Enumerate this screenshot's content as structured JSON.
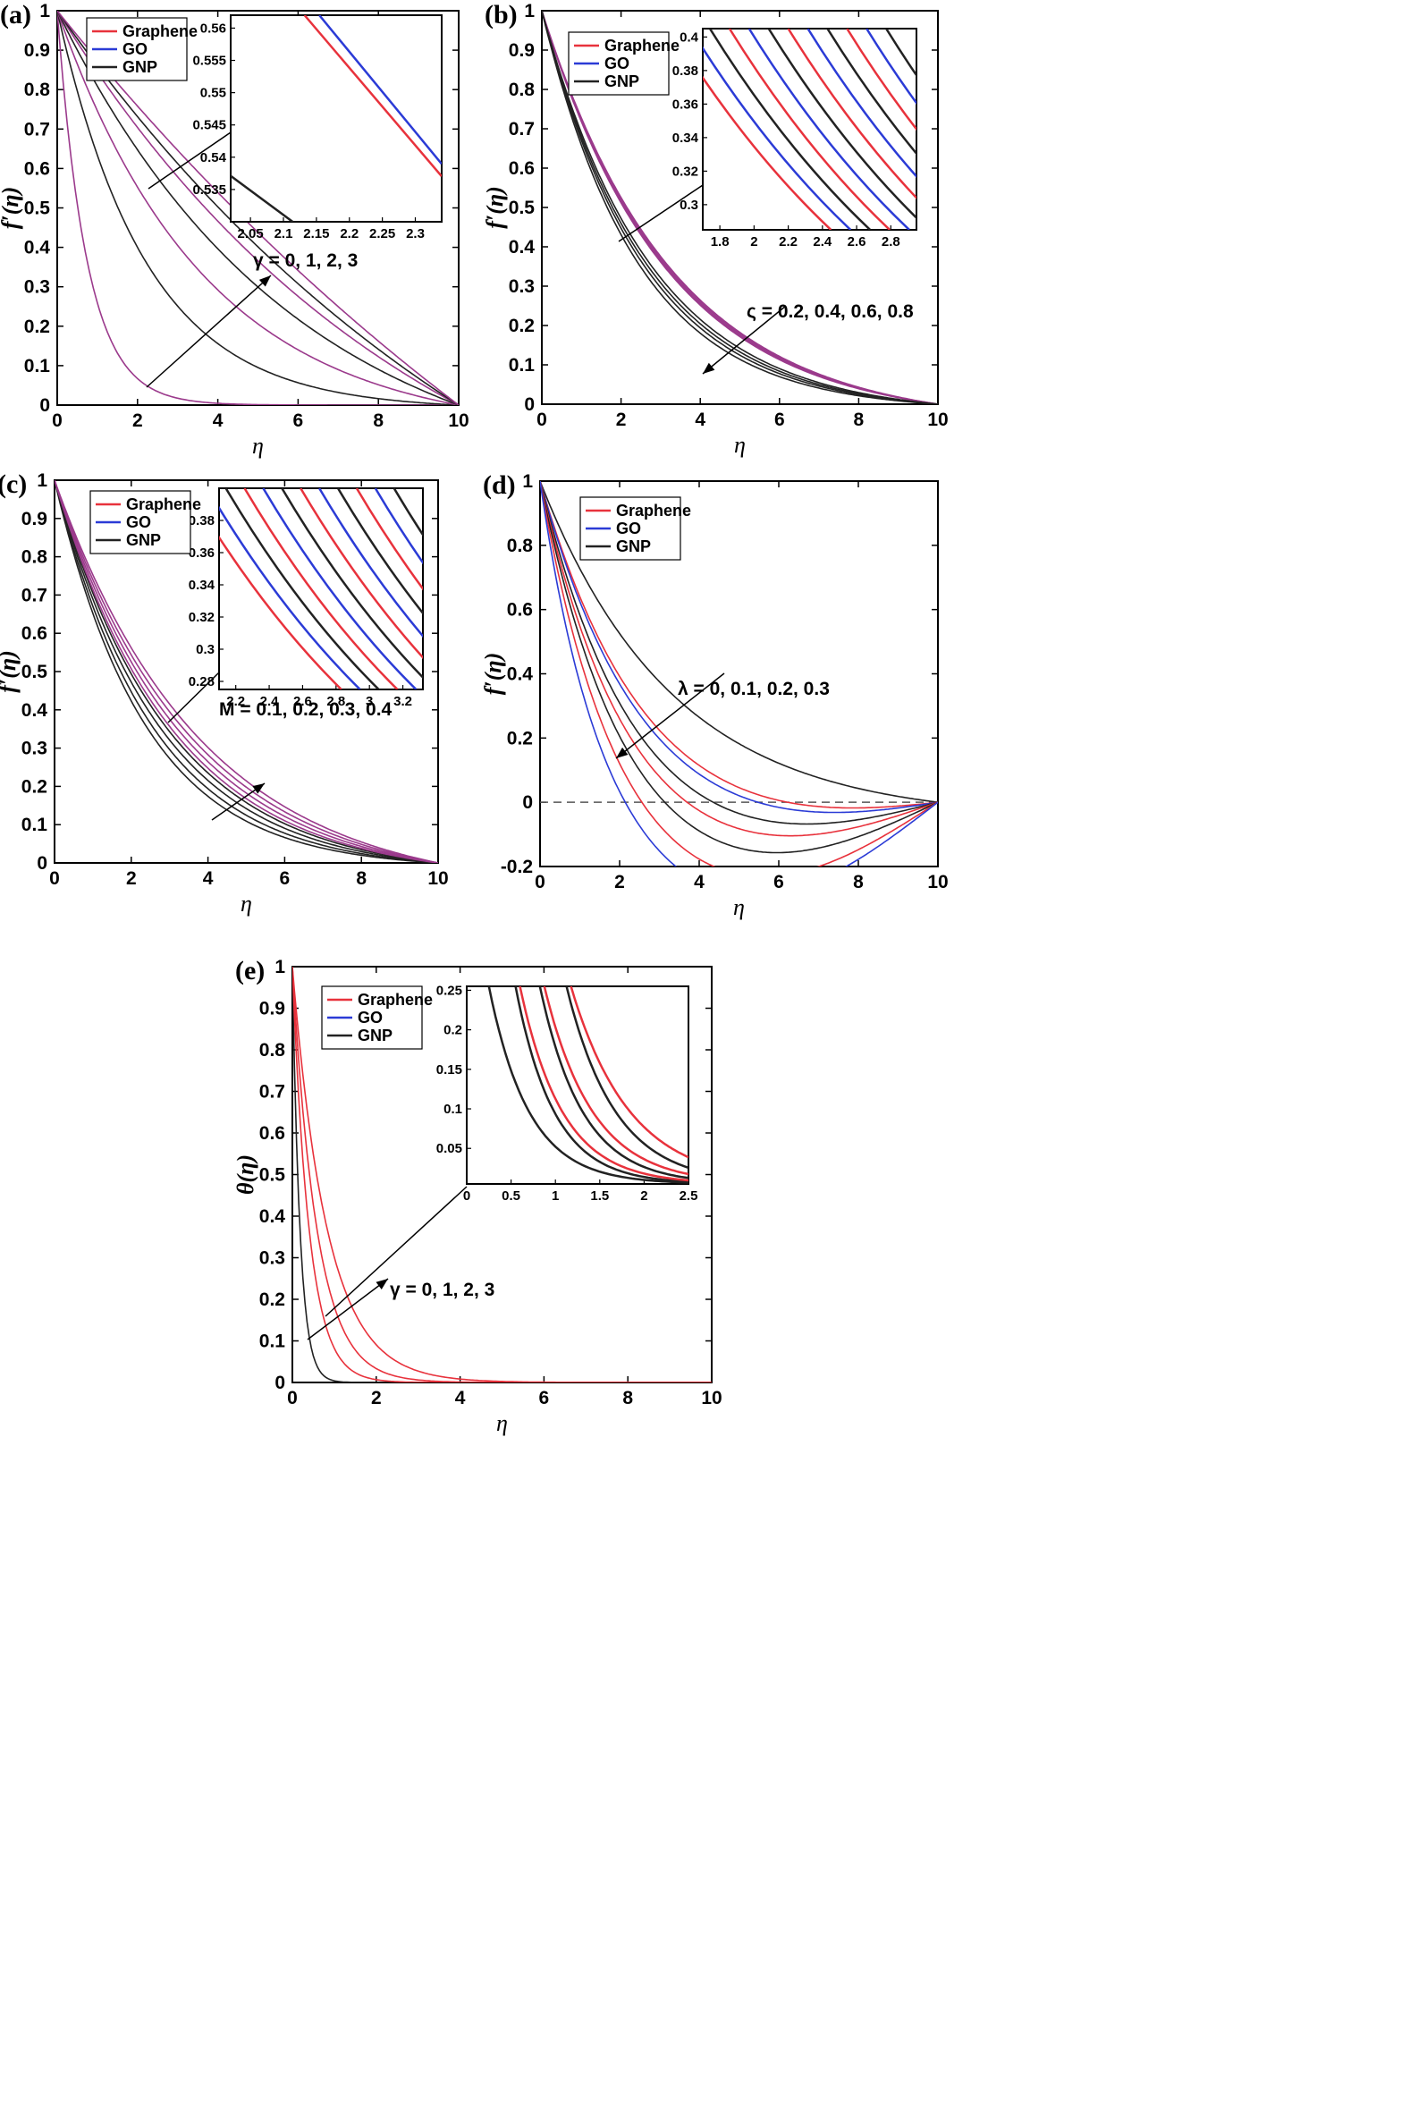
{
  "colors": {
    "graphene": "#e8323c",
    "go": "#2b3bd6",
    "gnp": "#222222",
    "mixed": "#9b3a8c"
  },
  "chart_data": [
    {
      "id": "a",
      "type": "line",
      "panel_label": "(a)",
      "ylabel": "f′(η)",
      "xlabel": "η",
      "xlim": [
        0,
        10
      ],
      "ylim": [
        0,
        1
      ],
      "xticks": [
        "0",
        "2",
        "4",
        "6",
        "8",
        "10"
      ],
      "yticks": [
        "0",
        "0.1",
        "0.2",
        "0.3",
        "0.4",
        "0.5",
        "0.6",
        "0.7",
        "0.8",
        "0.9",
        "1"
      ],
      "legend": [
        "Graphene",
        "GO",
        "GNP"
      ],
      "annotation": "γ = 0, 1, 2, 3",
      "series": [
        {
          "name": "Graphene/GO",
          "param": "γ=0",
          "kind": "decay",
          "decay_rate": 1.35
        },
        {
          "name": "GNP",
          "param": "γ=1",
          "kind": "bvp",
          "decay_rate": 0.45
        },
        {
          "name": "Graphene/GO",
          "param": "γ=1",
          "kind": "bvp",
          "decay_rate": 0.27
        },
        {
          "name": "GNP",
          "param": "γ=2",
          "kind": "bvp",
          "decay_rate": 0.17
        },
        {
          "name": "Graphene/GO",
          "param": "γ=2",
          "kind": "bvp",
          "decay_rate": 0.11
        },
        {
          "name": "GNP",
          "param": "γ=3",
          "kind": "bvp",
          "decay_rate": 0.08
        },
        {
          "name": "Graphene/GO",
          "param": "γ=3",
          "kind": "bvp",
          "decay_rate": 0.05
        }
      ],
      "inset": {
        "xlim": [
          2.02,
          2.34
        ],
        "ylim": [
          0.53,
          0.562
        ],
        "xticks": [
          "2.05",
          "2.1",
          "2.15",
          "2.2",
          "2.25",
          "2.3"
        ],
        "yticks": [
          "0.535",
          "0.54",
          "0.545",
          "0.55",
          "0.555",
          "0.56"
        ]
      }
    },
    {
      "id": "b",
      "type": "line",
      "panel_label": "(b)",
      "ylabel": "f′(η)",
      "xlabel": "η",
      "xlim": [
        0,
        10
      ],
      "ylim": [
        0,
        1
      ],
      "xticks": [
        "0",
        "2",
        "4",
        "6",
        "8",
        "10"
      ],
      "yticks": [
        "0",
        "0.1",
        "0.2",
        "0.3",
        "0.4",
        "0.5",
        "0.6",
        "0.7",
        "0.8",
        "0.9",
        "1"
      ],
      "legend": [
        "Graphene",
        "GO",
        "GNP"
      ],
      "annotation": "ς = 0.2, 0.4, 0.6, 0.8",
      "series": [
        {
          "name": "Graphene/GO",
          "param": "ς=0.2",
          "kind": "bvp",
          "decay_rate": 0.3
        },
        {
          "name": "Graphene/GO",
          "param": "ς=0.4",
          "kind": "bvp",
          "decay_rate": 0.305
        },
        {
          "name": "Graphene/GO",
          "param": "ς=0.6",
          "kind": "bvp",
          "decay_rate": 0.31
        },
        {
          "name": "Graphene/GO",
          "param": "ς=0.8",
          "kind": "bvp",
          "decay_rate": 0.315
        },
        {
          "name": "GNP",
          "param": "ς=0.2",
          "kind": "bvp",
          "decay_rate": 0.36
        },
        {
          "name": "GNP",
          "param": "ς=0.4",
          "kind": "bvp",
          "decay_rate": 0.375
        },
        {
          "name": "GNP",
          "param": "ς=0.6",
          "kind": "bvp",
          "decay_rate": 0.39
        },
        {
          "name": "GNP",
          "param": "ς=0.8",
          "kind": "bvp",
          "decay_rate": 0.41
        }
      ],
      "inset": {
        "xlim": [
          1.7,
          2.95
        ],
        "ylim": [
          0.285,
          0.405
        ],
        "xticks": [
          "1.8",
          "2",
          "2.2",
          "2.4",
          "2.6",
          "2.8"
        ],
        "yticks": [
          "0.3",
          "0.32",
          "0.34",
          "0.36",
          "0.38",
          "0.4"
        ]
      }
    },
    {
      "id": "c",
      "type": "line",
      "panel_label": "(c)",
      "ylabel": "f′(η)",
      "xlabel": "η",
      "xlim": [
        0,
        10
      ],
      "ylim": [
        0,
        1
      ],
      "xticks": [
        "0",
        "2",
        "4",
        "6",
        "8",
        "10"
      ],
      "yticks": [
        "0",
        "0.1",
        "0.2",
        "0.3",
        "0.4",
        "0.5",
        "0.6",
        "0.7",
        "0.8",
        "0.9",
        "1"
      ],
      "legend": [
        "Graphene",
        "GO",
        "GNP"
      ],
      "annotation": "M = 0.1, 0.2, 0.3, 0.4",
      "series": [
        {
          "name": "GNP",
          "param": "M=0.1",
          "kind": "bvp",
          "decay_rate": 0.42
        },
        {
          "name": "GNP",
          "param": "M=0.2",
          "kind": "bvp",
          "decay_rate": 0.39
        },
        {
          "name": "GNP",
          "param": "M=0.3",
          "kind": "bvp",
          "decay_rate": 0.36
        },
        {
          "name": "GNP",
          "param": "M=0.4",
          "kind": "bvp",
          "decay_rate": 0.335
        },
        {
          "name": "Graphene/GO",
          "param": "M=0.1",
          "kind": "bvp",
          "decay_rate": 0.32
        },
        {
          "name": "Graphene/GO",
          "param": "M=0.2",
          "kind": "bvp",
          "decay_rate": 0.3
        },
        {
          "name": "Graphene/GO",
          "param": "M=0.3",
          "kind": "bvp",
          "decay_rate": 0.28
        },
        {
          "name": "Graphene/GO",
          "param": "M=0.4",
          "kind": "bvp",
          "decay_rate": 0.26
        }
      ],
      "inset": {
        "xlim": [
          2.1,
          3.32
        ],
        "ylim": [
          0.275,
          0.4
        ],
        "xticks": [
          "2.2",
          "2.4",
          "2.6",
          "2.8",
          "3",
          "3.2"
        ],
        "yticks": [
          "0.28",
          "0.3",
          "0.32",
          "0.34",
          "0.36",
          "0.38"
        ]
      }
    },
    {
      "id": "d",
      "type": "line",
      "panel_label": "(d)",
      "ylabel": "f′(η)",
      "xlabel": "η",
      "xlim": [
        0,
        10
      ],
      "ylim": [
        -0.2,
        1
      ],
      "xticks": [
        "0",
        "2",
        "4",
        "6",
        "8",
        "10"
      ],
      "yticks": [
        "-0.2",
        "0",
        "0.2",
        "0.4",
        "0.6",
        "0.8",
        "1"
      ],
      "legend": [
        "Graphene",
        "GO",
        "GNP"
      ],
      "annotation": "λ = 0, 0.1, 0.2, 0.3",
      "series": [
        {
          "name": "GNP",
          "param": "λ=0",
          "kind": "overshoot",
          "decay_rate": 0.3,
          "dip": 0
        },
        {
          "name": "Graphene",
          "param": "λ=0",
          "kind": "overshoot",
          "decay_rate": 0.42,
          "dip": 0.02
        },
        {
          "name": "GO",
          "param": "λ=0",
          "kind": "overshoot",
          "decay_rate": 0.44,
          "dip": 0.025
        },
        {
          "name": "GNP",
          "param": "λ=0.1",
          "kind": "overshoot",
          "decay_rate": 0.5,
          "dip": 0.035
        },
        {
          "name": "Graphene",
          "param": "λ=0.1",
          "kind": "overshoot",
          "decay_rate": 0.55,
          "dip": 0.045
        },
        {
          "name": "GNP",
          "param": "λ=0.2",
          "kind": "overshoot",
          "decay_rate": 0.6,
          "dip": 0.06
        },
        {
          "name": "Graphene",
          "param": "λ=0.2",
          "kind": "overshoot",
          "decay_rate": 0.7,
          "dip": 0.08
        },
        {
          "name": "GO",
          "param": "λ=0.3",
          "kind": "overshoot",
          "decay_rate": 0.85,
          "dip": 0.095
        }
      ]
    },
    {
      "id": "e",
      "type": "line",
      "panel_label": "(e)",
      "ylabel": "θ(η)",
      "xlabel": "η",
      "xlim": [
        0,
        10
      ],
      "ylim": [
        0,
        1
      ],
      "xticks": [
        "0",
        "2",
        "4",
        "6",
        "8",
        "10"
      ],
      "yticks": [
        "0",
        "0.1",
        "0.2",
        "0.3",
        "0.4",
        "0.5",
        "0.6",
        "0.7",
        "0.8",
        "0.9",
        "1"
      ],
      "legend": [
        "Graphene",
        "GO",
        "GNP"
      ],
      "annotation": "γ = 0, 1, 2, 3",
      "series": [
        {
          "name": "GNP",
          "param": "γ=0",
          "kind": "decay",
          "decay_rate": 5.5
        },
        {
          "name": "Graphene/GNP",
          "param": "γ=1",
          "kind": "decay",
          "decay_rate": 2.5
        },
        {
          "name": "Graphene/GNP",
          "param": "γ=2",
          "kind": "decay",
          "decay_rate": 1.7
        },
        {
          "name": "Graphene/GNP",
          "param": "γ=3",
          "kind": "decay",
          "decay_rate": 1.2
        }
      ],
      "inset": {
        "xlim": [
          0,
          2.5
        ],
        "ylim": [
          0.005,
          0.255
        ],
        "xticks": [
          "0",
          "0.5",
          "1",
          "1.5",
          "2",
          "2.5"
        ],
        "yticks": [
          "0.05",
          "0.1",
          "0.15",
          "0.2",
          "0.25"
        ]
      }
    }
  ]
}
